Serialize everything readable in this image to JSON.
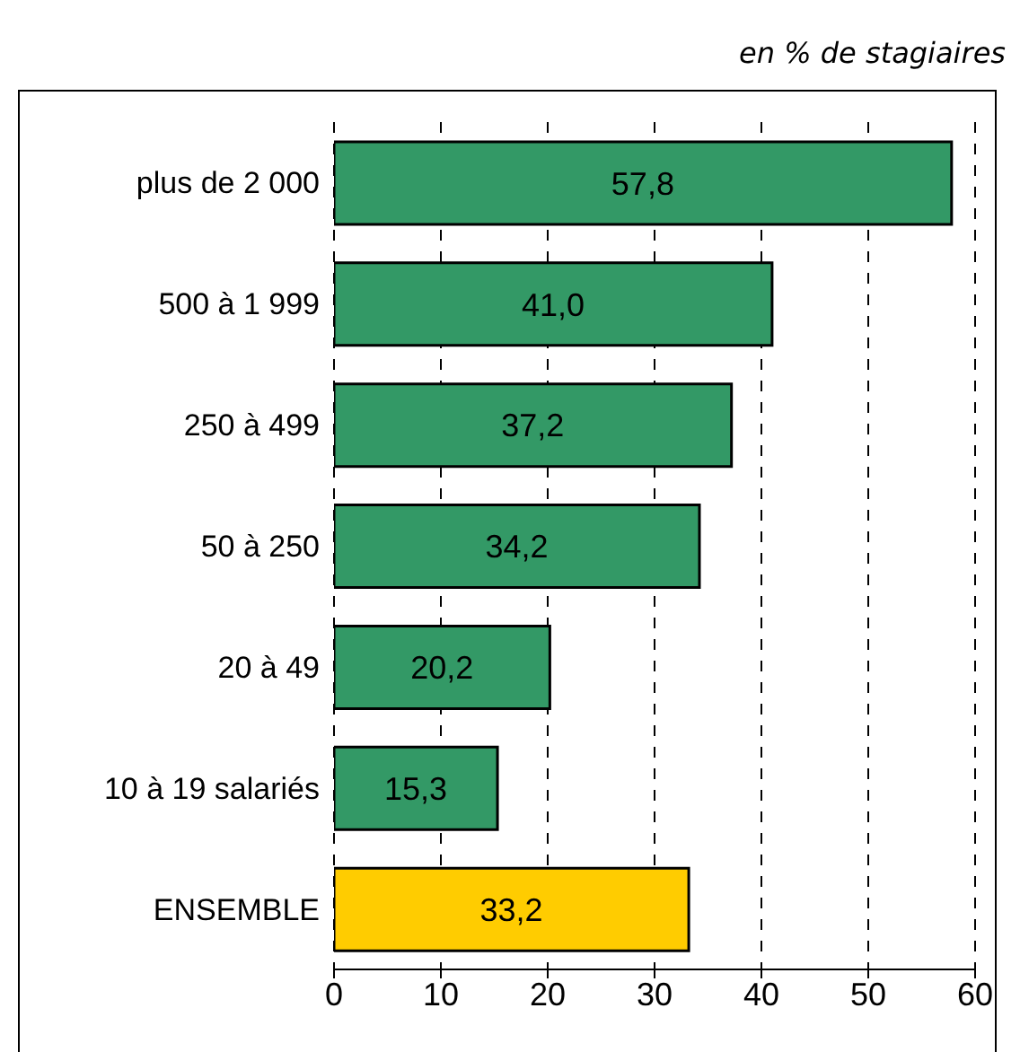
{
  "chart_data": {
    "type": "bar",
    "orientation": "horizontal",
    "subtitle": "en % de stagiaires",
    "categories": [
      "plus de 2 000",
      "500 à 1 999",
      "250 à 499",
      "50 à 250",
      "20 à 49",
      "10 à 19 salariés",
      "ENSEMBLE"
    ],
    "values": [
      57.8,
      41.0,
      37.2,
      34.2,
      20.2,
      15.3,
      33.2
    ],
    "value_labels": [
      "57,8",
      "41,0",
      "37,2",
      "34,2",
      "20,2",
      "15,3",
      "33,2"
    ],
    "colors": [
      "#339966",
      "#339966",
      "#339966",
      "#339966",
      "#339966",
      "#339966",
      "#ffcc00"
    ],
    "xlim": [
      0,
      60
    ],
    "xticks": [
      0,
      10,
      20,
      30,
      40,
      50,
      60
    ],
    "grid": "x"
  }
}
